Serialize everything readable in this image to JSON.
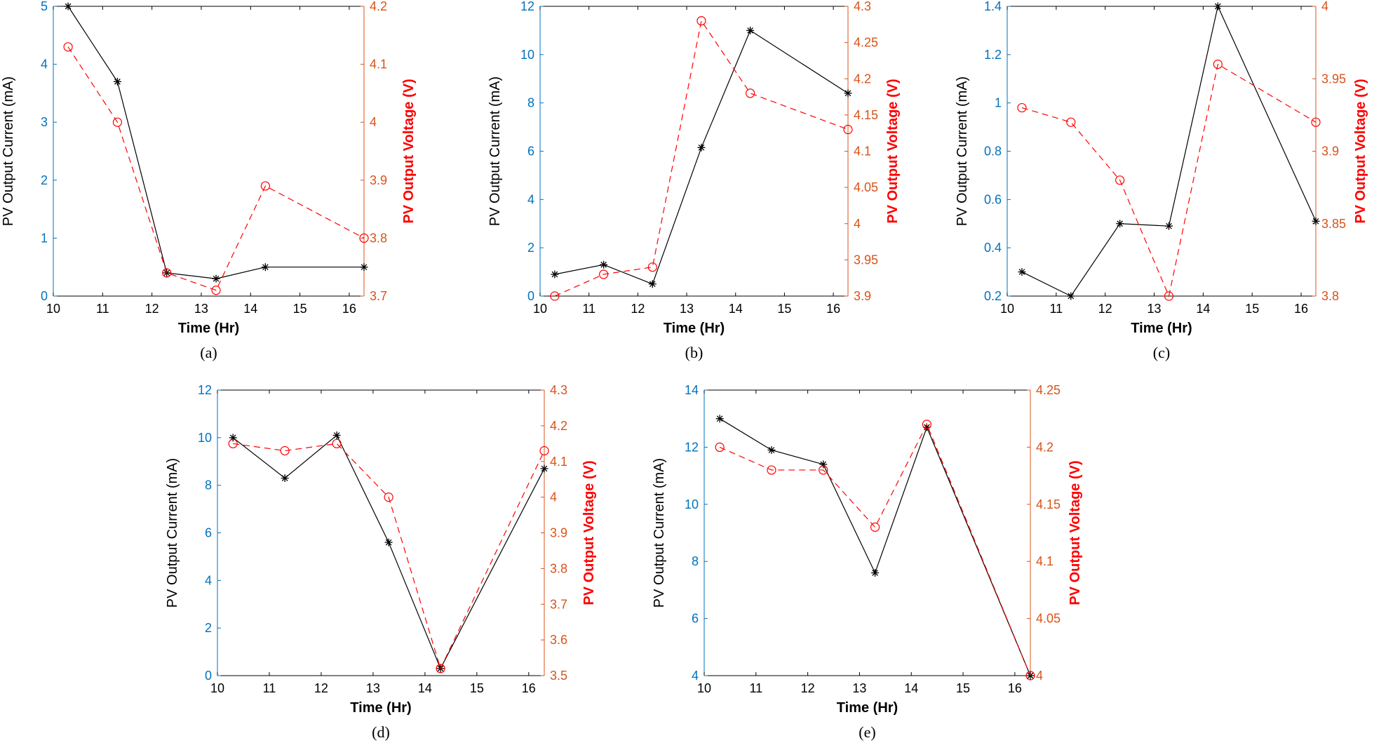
{
  "colors": {
    "current_axis": "#0072bd",
    "voltage_axis": "#d95319",
    "voltage_label": "#ff0000",
    "current_line": "#000000",
    "voltage_line": "#ff0000"
  },
  "chart_data": [
    {
      "type": "line",
      "panel": "a",
      "caption": "(a)",
      "xlabel": "Time (Hr)",
      "ylabel_left": "PV Output Current (mA)",
      "ylabel_right": "PV Output Voltage  (V)",
      "xlim": [
        10,
        16.3
      ],
      "xticks": [
        "10",
        "11",
        "12",
        "13",
        "14",
        "15",
        "16"
      ],
      "ylim_left": [
        0,
        5
      ],
      "yticks_left": [
        "0",
        "1",
        "2",
        "3",
        "4",
        "5"
      ],
      "ylim_right": [
        3.7,
        4.2
      ],
      "yticks_right": [
        "3.7",
        "3.8",
        "3.9",
        "4",
        "4.1",
        "4.2"
      ],
      "x": [
        10.3,
        11.3,
        12.3,
        13.3,
        14.3,
        16.3
      ],
      "series": [
        {
          "name": "PV Output Current",
          "axis": "left",
          "marker": "asterisk",
          "style": "solid",
          "values": [
            5.0,
            3.7,
            0.4,
            0.3,
            0.5,
            0.5
          ]
        },
        {
          "name": "PV Output Voltage",
          "axis": "right",
          "marker": "circle",
          "style": "dashed",
          "values": [
            4.13,
            4.0,
            3.74,
            3.71,
            3.89,
            3.8
          ]
        }
      ]
    },
    {
      "type": "line",
      "panel": "b",
      "caption": "(b)",
      "xlabel": "Time (Hr)",
      "ylabel_left": "PV Output Current (mA)",
      "ylabel_right": "PV Output Voltage  (V)",
      "xlim": [
        10,
        16.3
      ],
      "xticks": [
        "10",
        "11",
        "12",
        "13",
        "14",
        "15",
        "16"
      ],
      "ylim_left": [
        0,
        12
      ],
      "yticks_left": [
        "0",
        "2",
        "4",
        "6",
        "8",
        "10",
        "12"
      ],
      "ylim_right": [
        3.9,
        4.3
      ],
      "yticks_right": [
        "3.9",
        "3.95",
        "4",
        "4.05",
        "4.1",
        "4.15",
        "4.2",
        "4.25",
        "4.3"
      ],
      "x": [
        10.3,
        11.3,
        12.3,
        13.3,
        14.3,
        16.3
      ],
      "series": [
        {
          "name": "PV Output Current",
          "axis": "left",
          "marker": "asterisk",
          "style": "solid",
          "values": [
            0.9,
            1.3,
            0.5,
            6.15,
            11.0,
            8.4
          ]
        },
        {
          "name": "PV Output Voltage",
          "axis": "right",
          "marker": "circle",
          "style": "dashed",
          "values": [
            3.9,
            3.93,
            3.94,
            4.28,
            4.18,
            4.13
          ]
        }
      ]
    },
    {
      "type": "line",
      "panel": "c",
      "caption": "(c)",
      "xlabel": "Time (Hr)",
      "ylabel_left": "PV Output Current (mA)",
      "ylabel_right": "PV Output Voltage  (V)",
      "xlim": [
        10,
        16.3
      ],
      "xticks": [
        "10",
        "11",
        "12",
        "13",
        "14",
        "15",
        "16"
      ],
      "ylim_left": [
        0.2,
        1.4
      ],
      "yticks_left": [
        "0.2",
        "0.4",
        "0.6",
        "0.8",
        "1",
        "1.2",
        "1.4"
      ],
      "ylim_right": [
        3.8,
        4.0
      ],
      "yticks_right": [
        "3.8",
        "3.85",
        "3.9",
        "3.95",
        "4"
      ],
      "x": [
        10.3,
        11.3,
        12.3,
        13.3,
        14.3,
        16.3
      ],
      "series": [
        {
          "name": "PV Output Current",
          "axis": "left",
          "marker": "asterisk",
          "style": "solid",
          "values": [
            0.3,
            0.2,
            0.5,
            0.49,
            1.4,
            0.51
          ]
        },
        {
          "name": "PV Output Voltage",
          "axis": "right",
          "marker": "circle",
          "style": "dashed",
          "values": [
            3.93,
            3.92,
            3.88,
            3.8,
            3.96,
            3.92
          ]
        }
      ]
    },
    {
      "type": "line",
      "panel": "d",
      "caption": "(d)",
      "xlabel": "Time (Hr)",
      "ylabel_left": "PV Output Current (mA)",
      "ylabel_right": "PV Output Voltage  (V)",
      "xlim": [
        10,
        16.3
      ],
      "xticks": [
        "10",
        "11",
        "12",
        "13",
        "14",
        "15",
        "16"
      ],
      "ylim_left": [
        0,
        12
      ],
      "yticks_left": [
        "0",
        "2",
        "4",
        "6",
        "8",
        "10",
        "12"
      ],
      "ylim_right": [
        3.5,
        4.3
      ],
      "yticks_right": [
        "3.5",
        "3.6",
        "3.7",
        "3.8",
        "3.9",
        "4",
        "4.1",
        "4.2",
        "4.3"
      ],
      "x": [
        10.3,
        11.3,
        12.3,
        13.3,
        14.3,
        16.3
      ],
      "series": [
        {
          "name": "PV Output Current",
          "axis": "left",
          "marker": "asterisk",
          "style": "solid",
          "values": [
            10.0,
            8.3,
            10.1,
            5.6,
            0.3,
            8.7
          ]
        },
        {
          "name": "PV Output Voltage",
          "axis": "right",
          "marker": "circle",
          "style": "dashed",
          "values": [
            4.15,
            4.13,
            4.15,
            4.0,
            3.52,
            4.13
          ]
        }
      ]
    },
    {
      "type": "line",
      "panel": "e",
      "caption": "(e)",
      "xlabel": "Time (Hr)",
      "ylabel_left": "PV Output Current (mA)",
      "ylabel_right": "PV Output Voltage  (V)",
      "xlim": [
        10,
        16.3
      ],
      "xticks": [
        "10",
        "11",
        "12",
        "13",
        "14",
        "15",
        "16"
      ],
      "ylim_left": [
        4,
        14
      ],
      "yticks_left": [
        "4",
        "6",
        "8",
        "10",
        "12",
        "14"
      ],
      "ylim_right": [
        4.0,
        4.25
      ],
      "yticks_right": [
        "4",
        "4.05",
        "4.1",
        "4.15",
        "4.2",
        "4.25"
      ],
      "x": [
        10.3,
        11.3,
        12.3,
        13.3,
        14.3,
        16.3
      ],
      "series": [
        {
          "name": "PV Output Current",
          "axis": "left",
          "marker": "asterisk",
          "style": "solid",
          "values": [
            13.0,
            11.9,
            11.4,
            7.6,
            12.7,
            4.0
          ]
        },
        {
          "name": "PV Output Voltage",
          "axis": "right",
          "marker": "circle",
          "style": "dashed",
          "values": [
            4.2,
            4.18,
            4.18,
            4.13,
            4.22,
            4.0
          ]
        }
      ]
    }
  ]
}
